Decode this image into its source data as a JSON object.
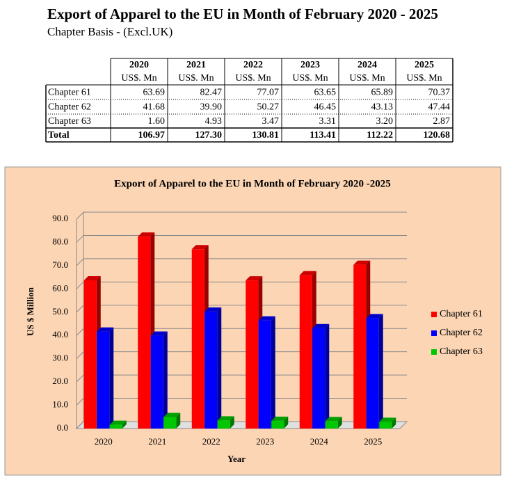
{
  "header": {
    "title": "Export of Apparel to the EU in Month of February 2020 - 2025",
    "subtitle": "Chapter Basis - (Excl.UK)"
  },
  "table": {
    "columns": [
      {
        "year": "2020",
        "unit": "US$. Mn"
      },
      {
        "year": "2021",
        "unit": "US$. Mn"
      },
      {
        "year": "2022",
        "unit": "US$. Mn"
      },
      {
        "year": "2023",
        "unit": "US$. Mn"
      },
      {
        "year": "2024",
        "unit": "US$. Mn"
      },
      {
        "year": "2025",
        "unit": "US$. Mn"
      }
    ],
    "rows": [
      {
        "label": "Chapter 61",
        "cells": [
          "63.69",
          "82.47",
          "77.07",
          "63.65",
          "65.89",
          "70.37"
        ]
      },
      {
        "label": "Chapter 62",
        "cells": [
          "41.68",
          "39.90",
          "50.27",
          "46.45",
          "43.13",
          "47.44"
        ]
      },
      {
        "label": "Chapter 63",
        "cells": [
          "1.60",
          "4.93",
          "3.47",
          "3.31",
          "3.20",
          "2.87"
        ]
      },
      {
        "label": "Total",
        "cells": [
          "106.97",
          "127.30",
          "130.81",
          "113.41",
          "112.22",
          "120.68"
        ]
      }
    ]
  },
  "chart_data": {
    "type": "bar",
    "title": "Export of Apparel to the EU in Month of February 2020 -2025",
    "x_label": "Year",
    "y_label": "US $ Million",
    "categories": [
      "2020",
      "2021",
      "2022",
      "2023",
      "2024",
      "2025"
    ],
    "series": [
      {
        "name": "Chapter 61",
        "color": "#ff0000",
        "values": [
          63.69,
          82.47,
          77.07,
          63.65,
          65.89,
          70.37
        ]
      },
      {
        "name": "Chapter 62",
        "color": "#0000ff",
        "values": [
          41.68,
          39.9,
          50.27,
          46.45,
          43.13,
          47.44
        ]
      },
      {
        "name": "Chapter 63",
        "color": "#00c800",
        "values": [
          1.6,
          4.93,
          3.47,
          3.31,
          3.2,
          2.87
        ]
      }
    ],
    "ylim": [
      0,
      90
    ],
    "yticks": [
      {
        "value": 0,
        "label": "0.0"
      },
      {
        "value": 10,
        "label": "10.0"
      },
      {
        "value": 20,
        "label": "20.0"
      },
      {
        "value": 30,
        "label": "30.0"
      },
      {
        "value": 40,
        "label": "40.0"
      },
      {
        "value": 50,
        "label": "50.0"
      },
      {
        "value": 60,
        "label": "60.0"
      },
      {
        "value": 70,
        "label": "70.0"
      },
      {
        "value": 80,
        "label": "80.0"
      },
      {
        "value": 90,
        "label": "90.0"
      }
    ],
    "grid": true,
    "legend": "right"
  }
}
